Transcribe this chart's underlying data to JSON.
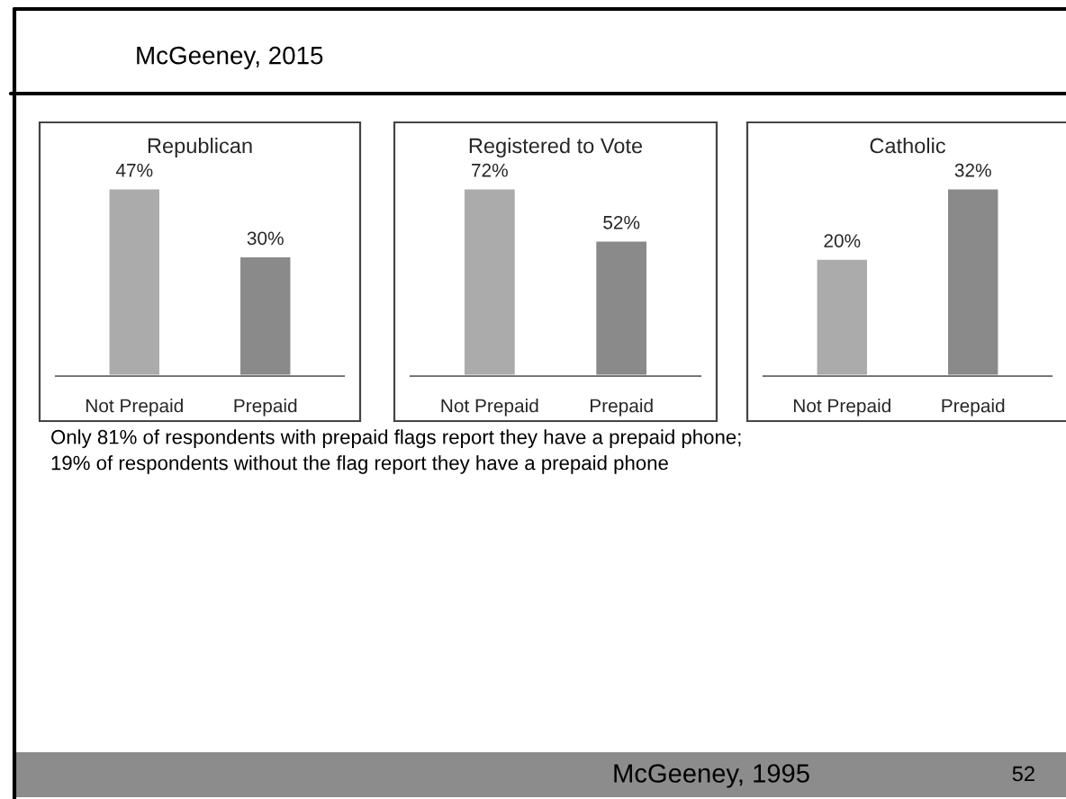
{
  "chart_data": [
    {
      "type": "bar",
      "title": "Republican",
      "categories": [
        "Not Prepaid",
        "Prepaid"
      ],
      "values": [
        47,
        30
      ],
      "value_labels": [
        "47%",
        "30%"
      ],
      "colors": [
        "#ababab",
        "#8a8a8a"
      ]
    },
    {
      "type": "bar",
      "title": "Registered to Vote",
      "categories": [
        "Not Prepaid",
        "Prepaid"
      ],
      "values": [
        72,
        52
      ],
      "value_labels": [
        "72%",
        "52%"
      ],
      "colors": [
        "#ababab",
        "#8a8a8a"
      ]
    },
    {
      "type": "bar",
      "title": "Catholic",
      "categories": [
        "Not Prepaid",
        "Prepaid"
      ],
      "values": [
        20,
        32
      ],
      "value_labels": [
        "20%",
        "32%"
      ],
      "colors": [
        "#ababab",
        "#8a8a8a"
      ]
    },
    {
      "type": "other",
      "annotations": [
        "McGeeney, 2015",
        "Only 81% of respondents with prepaid flags report they have a prepaid phone;\n19% of respondents without the flag report they have a prepaid phone",
        "McGeeney, 1995",
        "52"
      ]
    }
  ]
}
